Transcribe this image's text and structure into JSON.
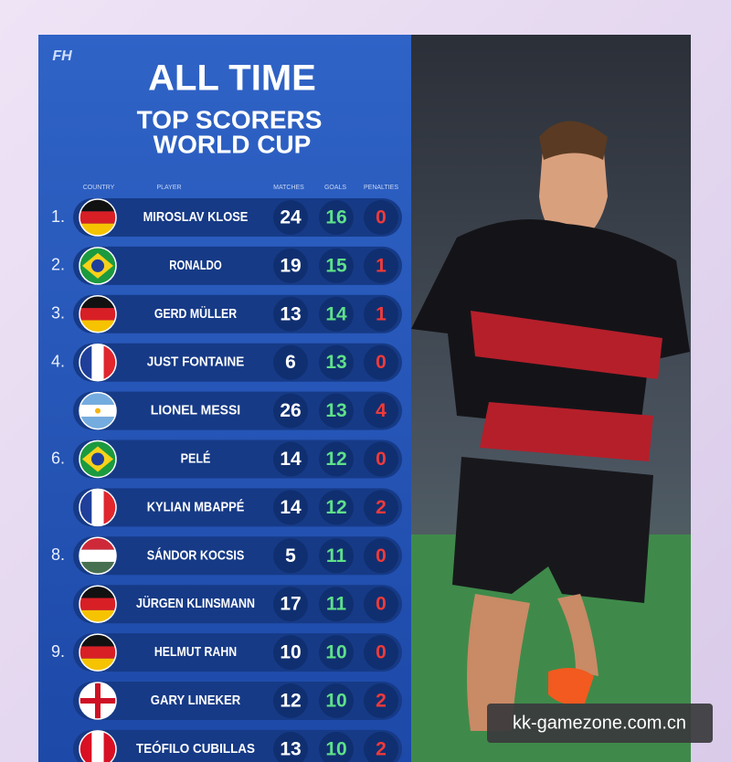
{
  "logo": "FH",
  "header": {
    "title": "ALL TIME",
    "subtitle_lines": [
      "TOP SCORERS",
      "WORLD CUP"
    ]
  },
  "table": {
    "columns": [
      "COUNTRY",
      "PLAYER",
      "MATCHES",
      "GOALS",
      "PENALTIES"
    ],
    "rows": [
      {
        "rank": "1.",
        "player": "MIROSLAV KLOSE",
        "matches": "24",
        "goals": "16",
        "penalties": "0"
      },
      {
        "rank": "2.",
        "player": "RONALDO",
        "matches": "19",
        "goals": "15",
        "penalties": "1"
      },
      {
        "rank": "3.",
        "player": "GERD MÜLLER",
        "matches": "13",
        "goals": "14",
        "penalties": "1"
      },
      {
        "rank": "4.",
        "player": "JUST FONTAINE",
        "matches": "6",
        "goals": "13",
        "penalties": "0"
      },
      {
        "rank": null,
        "player": "LIONEL MESSI",
        "matches": "26",
        "goals": "13",
        "penalties": "4"
      },
      {
        "rank": "6.",
        "player": "PELÉ",
        "matches": "14",
        "goals": "12",
        "penalties": "0"
      },
      {
        "rank": null,
        "player": "KYLIAN MBAPPÉ",
        "matches": "14",
        "goals": "12",
        "penalties": "2"
      },
      {
        "rank": "8.",
        "player": "SÁNDOR KOCSIS",
        "matches": "5",
        "goals": "11",
        "penalties": "0"
      },
      {
        "rank": null,
        "player": "JÜRGEN KLINSMANN",
        "matches": "17",
        "goals": "11",
        "penalties": "0"
      },
      {
        "rank": "9.",
        "player": "HELMUT RAHN",
        "matches": "10",
        "goals": "10",
        "penalties": "0"
      },
      {
        "rank": null,
        "player": "GARY LINEKER",
        "matches": "12",
        "goals": "10",
        "penalties": "2"
      },
      {
        "rank": null,
        "player": "TEÓFILO CUBILLAS",
        "matches": "13",
        "goals": "10",
        "penalties": "2"
      }
    ]
  },
  "watermark": "kk-gamezone.com.cn"
}
